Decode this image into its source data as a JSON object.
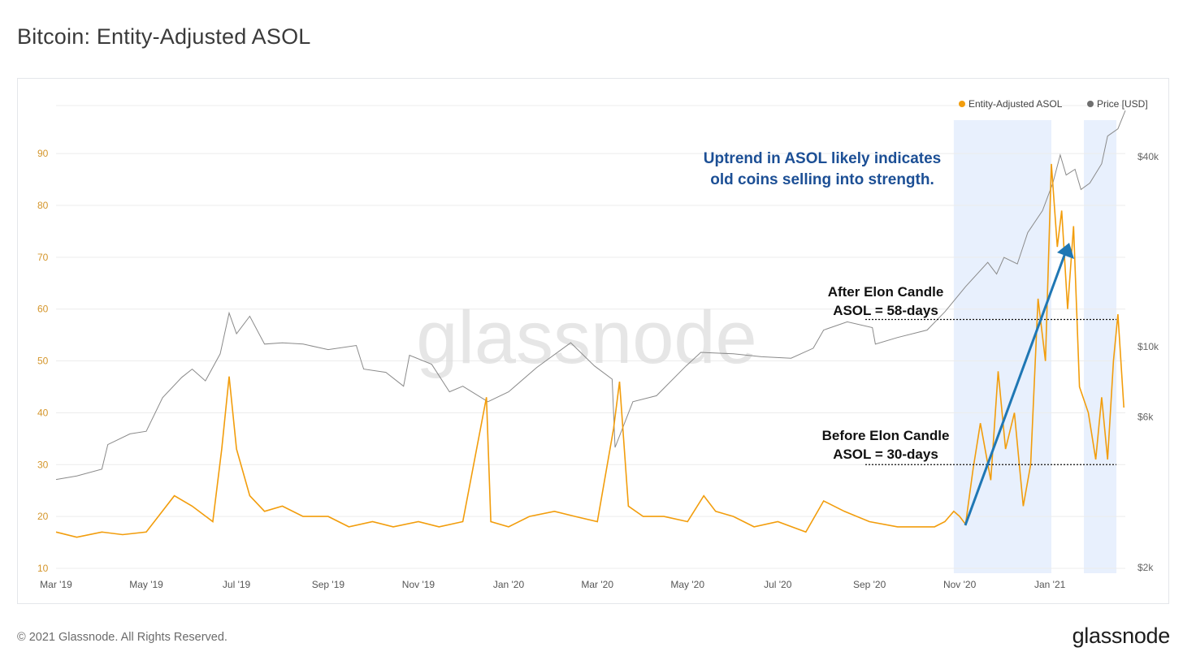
{
  "page": {
    "title": "Bitcoin: Entity-Adjusted ASOL",
    "copyright": "© 2021 Glassnode. All Rights Reserved.",
    "logo": "glassnode",
    "watermark": "glassnode"
  },
  "colors": {
    "asol": "#f29d0c",
    "price": "#8a8a8a",
    "annotation_blue": "#1c4f95",
    "arrow": "#1f77b4",
    "shade": "#e8f0fd"
  },
  "chart_data": {
    "type": "line",
    "title": "Bitcoin: Entity-Adjusted ASOL",
    "x_ticks": [
      "Mar '19",
      "May '19",
      "Jul '19",
      "Sep '19",
      "Nov '19",
      "Jan '20",
      "Mar '20",
      "May '20",
      "Jul '20",
      "Sep '20",
      "Nov '20",
      "Jan '21"
    ],
    "x_range": [
      "2019-03-01",
      "2021-02-21"
    ],
    "y_left": {
      "ticks": [
        10,
        20,
        30,
        40,
        50,
        60,
        70,
        80,
        90
      ],
      "range": [
        10,
        95
      ]
    },
    "y_right": {
      "ticks": [
        "$2k",
        "$6k",
        "$10k",
        "$40k"
      ],
      "tick_values": [
        2000,
        6000,
        10000,
        40000
      ],
      "scale": "log",
      "range": [
        2000,
        55000
      ]
    },
    "legend": {
      "placement": "top-right",
      "items": [
        "Entity-Adjusted ASOL",
        "Price [USD]"
      ]
    },
    "grid": "horizontal",
    "highlight_ranges": [
      [
        "2020-10-28",
        "2021-01-02"
      ],
      [
        "2021-01-24",
        "2021-02-15"
      ]
    ],
    "series": [
      {
        "name": "Entity-Adjusted ASOL",
        "axis": "left",
        "points": [
          [
            "2019-03-01",
            17
          ],
          [
            "2019-03-15",
            16
          ],
          [
            "2019-04-01",
            17
          ],
          [
            "2019-04-15",
            16.5
          ],
          [
            "2019-05-01",
            17
          ],
          [
            "2019-05-20",
            24
          ],
          [
            "2019-06-01",
            22
          ],
          [
            "2019-06-15",
            19
          ],
          [
            "2019-06-21",
            33
          ],
          [
            "2019-06-26",
            47
          ],
          [
            "2019-07-01",
            33
          ],
          [
            "2019-07-10",
            24
          ],
          [
            "2019-07-20",
            21
          ],
          [
            "2019-08-01",
            22
          ],
          [
            "2019-08-15",
            20
          ],
          [
            "2019-09-01",
            20
          ],
          [
            "2019-09-15",
            18
          ],
          [
            "2019-10-01",
            19
          ],
          [
            "2019-10-15",
            18
          ],
          [
            "2019-11-01",
            19
          ],
          [
            "2019-11-15",
            18
          ],
          [
            "2019-12-01",
            19
          ],
          [
            "2019-12-17",
            43
          ],
          [
            "2019-12-20",
            19
          ],
          [
            "2020-01-01",
            18
          ],
          [
            "2020-01-15",
            20
          ],
          [
            "2020-02-01",
            21
          ],
          [
            "2020-02-15",
            20
          ],
          [
            "2020-03-01",
            19
          ],
          [
            "2020-03-12",
            37
          ],
          [
            "2020-03-16",
            46
          ],
          [
            "2020-03-22",
            22
          ],
          [
            "2020-04-01",
            20
          ],
          [
            "2020-04-15",
            20
          ],
          [
            "2020-05-01",
            19
          ],
          [
            "2020-05-12",
            24
          ],
          [
            "2020-05-20",
            21
          ],
          [
            "2020-06-01",
            20
          ],
          [
            "2020-06-15",
            18
          ],
          [
            "2020-07-01",
            19
          ],
          [
            "2020-07-20",
            17
          ],
          [
            "2020-08-01",
            23
          ],
          [
            "2020-08-15",
            21
          ],
          [
            "2020-09-01",
            19
          ],
          [
            "2020-09-20",
            18
          ],
          [
            "2020-10-01",
            18
          ],
          [
            "2020-10-15",
            18
          ],
          [
            "2020-10-22",
            19
          ],
          [
            "2020-10-28",
            21
          ],
          [
            "2020-11-01",
            20
          ],
          [
            "2020-11-05",
            18.5
          ],
          [
            "2020-11-10",
            29
          ],
          [
            "2020-11-15",
            38
          ],
          [
            "2020-11-22",
            27
          ],
          [
            "2020-11-27",
            48
          ],
          [
            "2020-12-02",
            33
          ],
          [
            "2020-12-08",
            40
          ],
          [
            "2020-12-14",
            22
          ],
          [
            "2020-12-19",
            30
          ],
          [
            "2020-12-24",
            62
          ],
          [
            "2020-12-29",
            50
          ],
          [
            "2021-01-02",
            88
          ],
          [
            "2021-01-06",
            72
          ],
          [
            "2021-01-09",
            79
          ],
          [
            "2021-01-13",
            60
          ],
          [
            "2021-01-17",
            76
          ],
          [
            "2021-01-21",
            45
          ],
          [
            "2021-01-27",
            40
          ],
          [
            "2021-02-01",
            31
          ],
          [
            "2021-02-05",
            43
          ],
          [
            "2021-02-09",
            31
          ],
          [
            "2021-02-13",
            50
          ],
          [
            "2021-02-16",
            59
          ],
          [
            "2021-02-20",
            41
          ]
        ]
      },
      {
        "name": "Price [USD]",
        "axis": "right",
        "points": [
          [
            "2019-03-01",
            3800
          ],
          [
            "2019-03-15",
            3900
          ],
          [
            "2019-04-01",
            4100
          ],
          [
            "2019-04-05",
            4900
          ],
          [
            "2019-04-20",
            5300
          ],
          [
            "2019-05-01",
            5400
          ],
          [
            "2019-05-12",
            6900
          ],
          [
            "2019-05-25",
            8000
          ],
          [
            "2019-06-01",
            8500
          ],
          [
            "2019-06-10",
            7800
          ],
          [
            "2019-06-20",
            9500
          ],
          [
            "2019-06-26",
            12800
          ],
          [
            "2019-07-01",
            11000
          ],
          [
            "2019-07-10",
            12500
          ],
          [
            "2019-07-20",
            10200
          ],
          [
            "2019-08-01",
            10300
          ],
          [
            "2019-08-15",
            10200
          ],
          [
            "2019-09-01",
            9800
          ],
          [
            "2019-09-20",
            10100
          ],
          [
            "2019-09-25",
            8500
          ],
          [
            "2019-10-10",
            8300
          ],
          [
            "2019-10-22",
            7500
          ],
          [
            "2019-10-26",
            9400
          ],
          [
            "2019-11-10",
            8800
          ],
          [
            "2019-11-22",
            7200
          ],
          [
            "2019-12-01",
            7500
          ],
          [
            "2019-12-18",
            6700
          ],
          [
            "2020-01-01",
            7200
          ],
          [
            "2020-01-20",
            8600
          ],
          [
            "2020-02-12",
            10300
          ],
          [
            "2020-02-28",
            8700
          ],
          [
            "2020-03-11",
            7900
          ],
          [
            "2020-03-13",
            4800
          ],
          [
            "2020-03-25",
            6700
          ],
          [
            "2020-04-10",
            7000
          ],
          [
            "2020-04-30",
            8700
          ],
          [
            "2020-05-10",
            9600
          ],
          [
            "2020-06-01",
            9500
          ],
          [
            "2020-06-20",
            9300
          ],
          [
            "2020-07-10",
            9200
          ],
          [
            "2020-07-25",
            9900
          ],
          [
            "2020-08-01",
            11300
          ],
          [
            "2020-08-17",
            12000
          ],
          [
            "2020-09-03",
            11500
          ],
          [
            "2020-09-05",
            10200
          ],
          [
            "2020-09-20",
            10700
          ],
          [
            "2020-10-10",
            11300
          ],
          [
            "2020-10-22",
            12900
          ],
          [
            "2020-11-05",
            15500
          ],
          [
            "2020-11-20",
            18500
          ],
          [
            "2020-11-26",
            17000
          ],
          [
            "2020-12-01",
            19200
          ],
          [
            "2020-12-10",
            18300
          ],
          [
            "2020-12-17",
            23000
          ],
          [
            "2020-12-27",
            27000
          ],
          [
            "2021-01-03",
            33000
          ],
          [
            "2021-01-08",
            40500
          ],
          [
            "2021-01-12",
            35000
          ],
          [
            "2021-01-18",
            36500
          ],
          [
            "2021-01-22",
            31500
          ],
          [
            "2021-01-28",
            33000
          ],
          [
            "2021-02-05",
            38000
          ],
          [
            "2021-02-09",
            46500
          ],
          [
            "2021-02-16",
            49000
          ],
          [
            "2021-02-21",
            56000
          ]
        ]
      }
    ],
    "annotations": [
      {
        "id": "uptrend",
        "lines": [
          "Uptrend in ASOL likely indicates",
          "old coins selling into strength."
        ]
      },
      {
        "id": "after",
        "lines": [
          "After Elon Candle",
          "ASOL = 58-days"
        ],
        "level": 58
      },
      {
        "id": "before",
        "lines": [
          "Before Elon Candle",
          "ASOL = 30-days"
        ],
        "level": 30
      }
    ]
  }
}
